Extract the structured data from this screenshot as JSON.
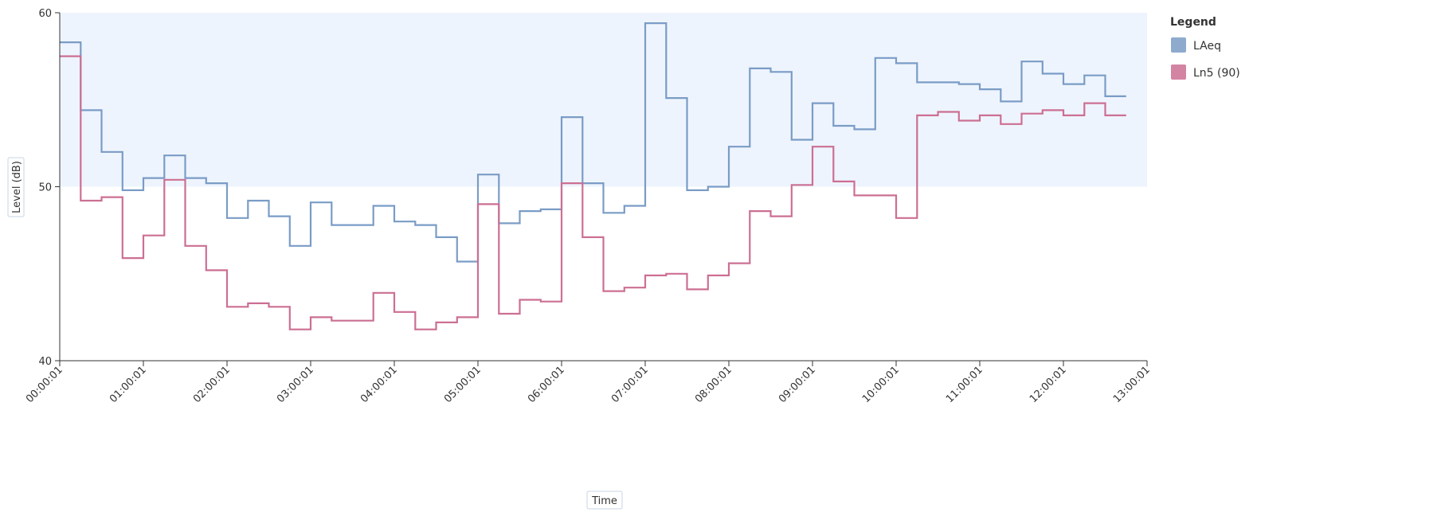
{
  "chart_data": {
    "type": "line",
    "step": true,
    "title": "",
    "xlabel": "Time",
    "ylabel": "Level (dB)",
    "ylim": [
      40,
      60
    ],
    "yticks": [
      "40",
      "50",
      "60"
    ],
    "x_ticks": [
      "00:00:01",
      "01:00:01",
      "02:00:01",
      "03:00:01",
      "04:00:01",
      "05:00:01",
      "06:00:01",
      "07:00:01",
      "08:00:01",
      "09:00:01",
      "10:00:01",
      "11:00:01",
      "12:00:01",
      "13:00:01"
    ],
    "x_range_hours": [
      0,
      13
    ],
    "x_interval_minutes": 15,
    "highlight_band": {
      "y": [
        50,
        60
      ],
      "color": "#eef4fd"
    },
    "legend": {
      "title": "Legend",
      "placement": "right"
    },
    "series": [
      {
        "name": "LAeq",
        "color": "#7a9cc6",
        "values": [
          58.3,
          54.4,
          52.0,
          49.8,
          50.5,
          51.8,
          50.5,
          50.2,
          48.2,
          49.2,
          48.3,
          46.6,
          49.1,
          47.8,
          47.8,
          48.9,
          48.0,
          47.8,
          47.1,
          45.7,
          50.7,
          47.9,
          48.6,
          48.7,
          54.0,
          50.2,
          48.5,
          48.9,
          59.4,
          55.1,
          49.8,
          50.0,
          52.3,
          56.8,
          56.6,
          52.7,
          54.8,
          53.5,
          53.3,
          57.4,
          57.1,
          56.0,
          56.0,
          55.9,
          55.6,
          54.9,
          57.2,
          56.5,
          55.9,
          56.4,
          55.2
        ]
      },
      {
        "name": "Ln5 (90)",
        "color": "#cc6f93",
        "values": [
          57.5,
          49.2,
          49.4,
          45.9,
          47.2,
          50.4,
          46.6,
          45.2,
          43.1,
          43.3,
          43.1,
          41.8,
          42.5,
          42.3,
          42.3,
          43.9,
          42.8,
          41.8,
          42.2,
          42.5,
          49.0,
          42.7,
          43.5,
          43.4,
          50.2,
          47.1,
          44.0,
          44.2,
          44.9,
          45.0,
          44.1,
          44.9,
          45.6,
          48.6,
          48.3,
          50.1,
          52.3,
          50.3,
          49.5,
          49.5,
          48.2,
          54.1,
          54.3,
          53.8,
          54.1,
          53.6,
          54.2,
          54.4,
          54.1,
          54.8,
          54.1
        ]
      }
    ]
  }
}
